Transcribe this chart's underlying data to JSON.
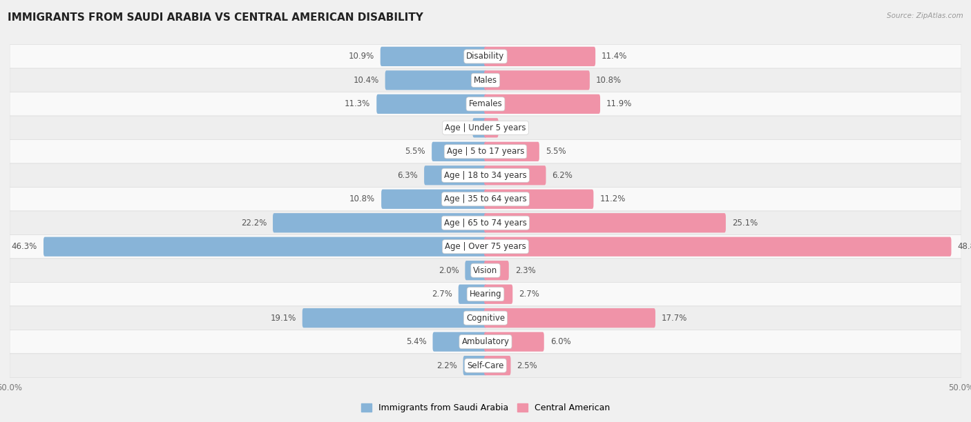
{
  "title": "IMMIGRANTS FROM SAUDI ARABIA VS CENTRAL AMERICAN DISABILITY",
  "source": "Source: ZipAtlas.com",
  "categories": [
    "Disability",
    "Males",
    "Females",
    "Age | Under 5 years",
    "Age | 5 to 17 years",
    "Age | 18 to 34 years",
    "Age | 35 to 64 years",
    "Age | 65 to 74 years",
    "Age | Over 75 years",
    "Vision",
    "Hearing",
    "Cognitive",
    "Ambulatory",
    "Self-Care"
  ],
  "left_values": [
    10.9,
    10.4,
    11.3,
    1.2,
    5.5,
    6.3,
    10.8,
    22.2,
    46.3,
    2.0,
    2.7,
    19.1,
    5.4,
    2.2
  ],
  "right_values": [
    11.4,
    10.8,
    11.9,
    1.2,
    5.5,
    6.2,
    11.2,
    25.1,
    48.8,
    2.3,
    2.7,
    17.7,
    6.0,
    2.5
  ],
  "left_color": "#88b4d8",
  "right_color": "#f093a8",
  "left_label": "Immigrants from Saudi Arabia",
  "right_label": "Central American",
  "axis_limit": 50.0,
  "background_color": "#f0f0f0",
  "row_color_odd": "#f7f7f7",
  "row_color_even": "#e8e8e8",
  "title_fontsize": 11,
  "label_fontsize": 8.5,
  "value_fontsize": 8.5
}
